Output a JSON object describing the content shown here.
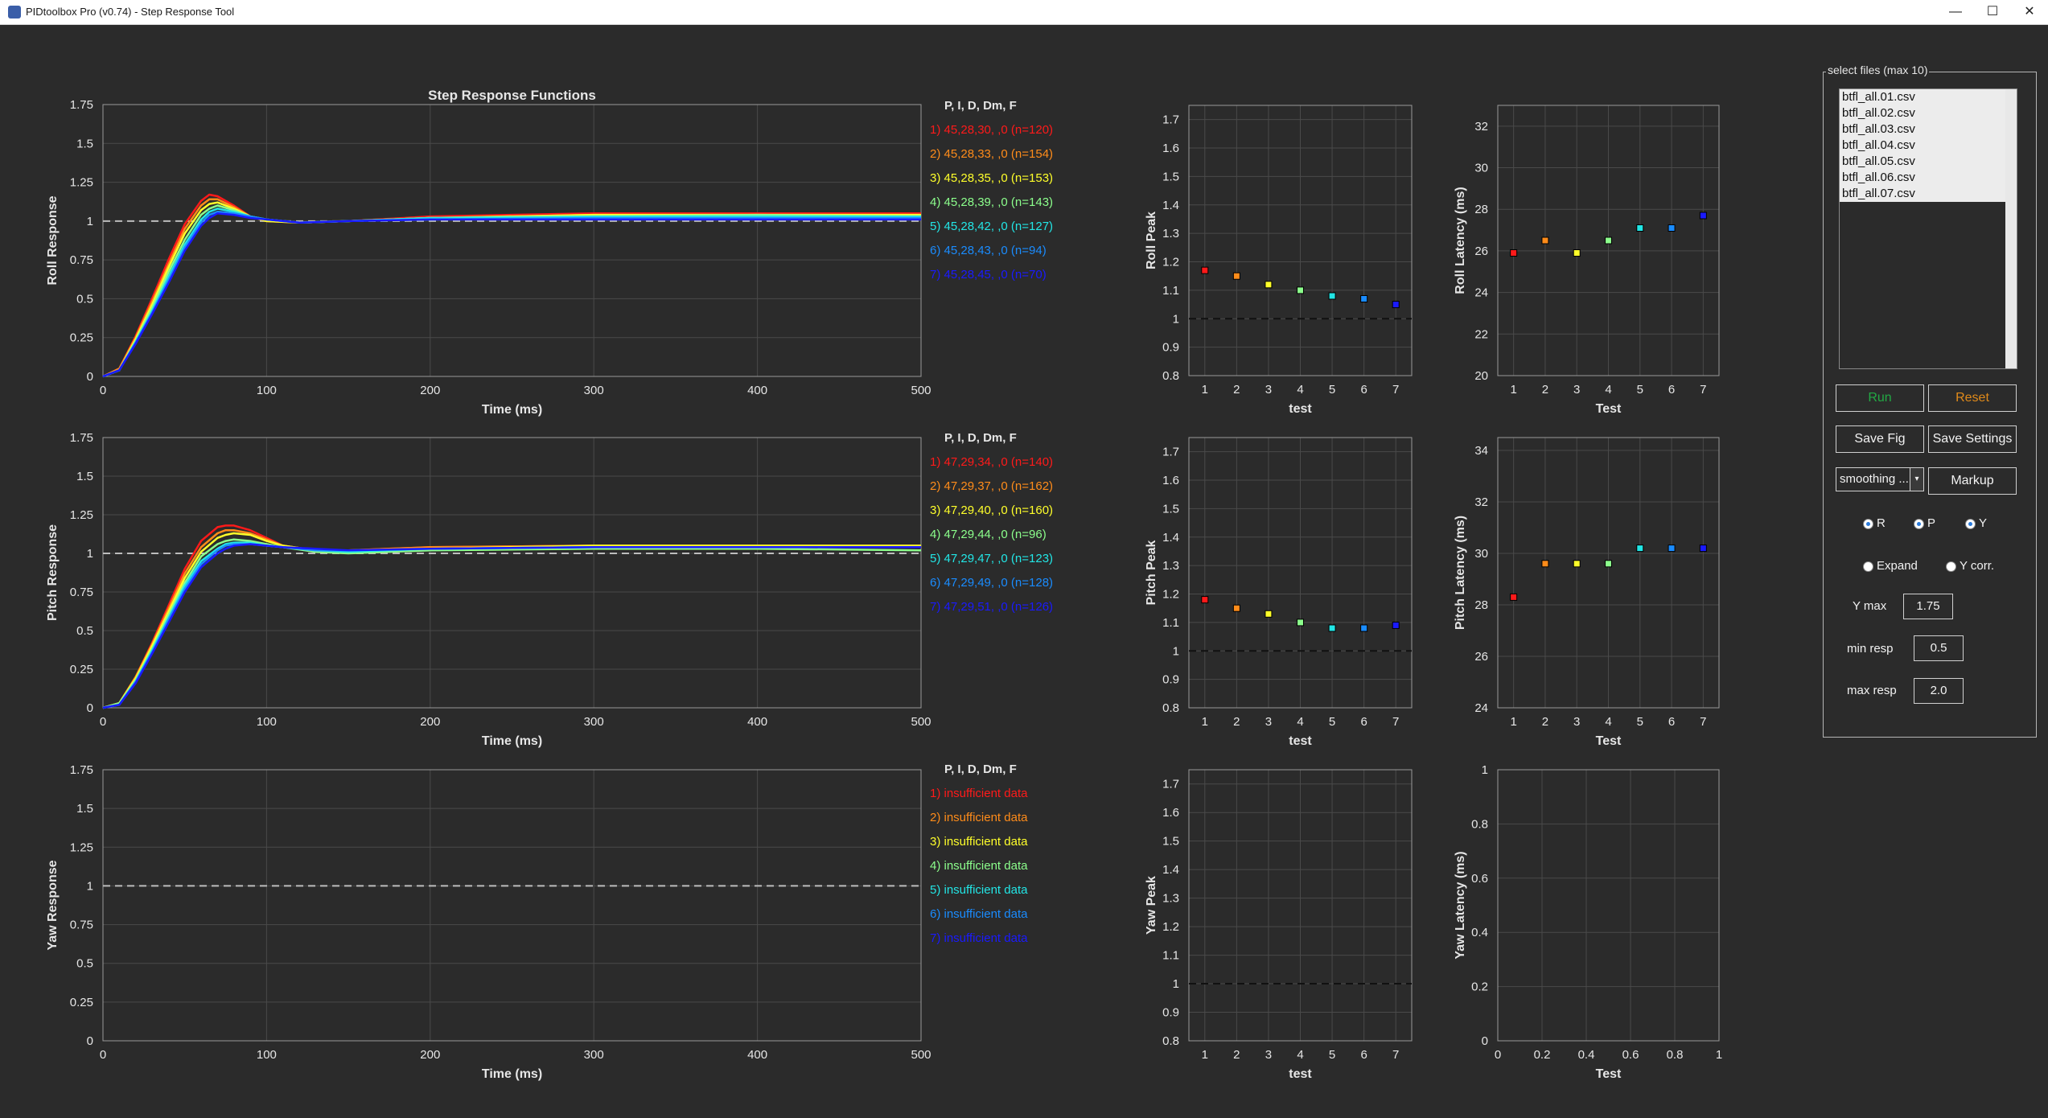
{
  "window": {
    "title": "PIDtoolbox Pro (v0.74) - Step Response Tool",
    "minimize": "—",
    "maximize": "☐",
    "close": "✕"
  },
  "colors": {
    "background": "#2b2b2b",
    "grid": "#4a4a4a",
    "axis_text": "#e6e6e6",
    "test_colors": [
      "#ff1a1a",
      "#ff8c1a",
      "#ffff2a",
      "#8cff8c",
      "#22e6e6",
      "#1a8cff",
      "#1a1aff"
    ]
  },
  "legends": [
    {
      "header": "P, I, D, Dm, F",
      "items": [
        "1) 45,28,30, ,0  (n=120)",
        "2) 45,28,33, ,0  (n=154)",
        "3) 45,28,35, ,0  (n=153)",
        "4) 45,28,39, ,0  (n=143)",
        "5) 45,28,42, ,0  (n=127)",
        "6) 45,28,43, ,0  (n=94)",
        "7) 45,28,45, ,0  (n=70)"
      ]
    },
    {
      "header": "P, I, D, Dm, F",
      "items": [
        "1) 47,29,34, ,0  (n=140)",
        "2) 47,29,37, ,0  (n=162)",
        "3) 47,29,40, ,0  (n=160)",
        "4) 47,29,44, ,0  (n=96)",
        "5) 47,29,47, ,0  (n=123)",
        "6) 47,29,49, ,0  (n=128)",
        "7) 47,29,51, ,0  (n=126)"
      ]
    },
    {
      "header": "P, I, D, Dm, F",
      "items": [
        "1) insufficient data",
        "2) insufficient data",
        "3) insufficient data",
        "4) insufficient data",
        "5) insufficient data",
        "6) insufficient data",
        "7) insufficient data"
      ]
    }
  ],
  "chart_data": [
    {
      "type": "line",
      "title": "Step Response Functions",
      "xlabel": "Time (ms)",
      "ylabel": "Roll Response",
      "xlim": [
        0,
        500
      ],
      "ylim": [
        0,
        1.75
      ],
      "xticks": [
        0,
        100,
        200,
        300,
        400,
        500
      ],
      "yticks": [
        0,
        0.25,
        0.5,
        0.75,
        1,
        1.25,
        1.5,
        1.75
      ],
      "reference_line": 1,
      "grid": true,
      "series": [
        {
          "name": "1) 45,28,30, ,0  (n=120)",
          "x": [
            0,
            10,
            20,
            30,
            40,
            50,
            60,
            65,
            70,
            80,
            90,
            100,
            120,
            150,
            200,
            300,
            400,
            500
          ],
          "y": [
            0,
            0.05,
            0.26,
            0.5,
            0.75,
            0.98,
            1.13,
            1.17,
            1.16,
            1.1,
            1.03,
            1.0,
            0.99,
            1.0,
            1.03,
            1.05,
            1.05,
            1.05
          ]
        },
        {
          "name": "2) 45,28,33, ,0  (n=154)",
          "x": [
            0,
            10,
            20,
            30,
            40,
            50,
            60,
            65,
            70,
            80,
            90,
            100,
            120,
            150,
            200,
            300,
            400,
            500
          ],
          "y": [
            0,
            0.05,
            0.25,
            0.48,
            0.72,
            0.95,
            1.1,
            1.14,
            1.14,
            1.09,
            1.03,
            1.0,
            0.99,
            1.0,
            1.02,
            1.04,
            1.04,
            1.04
          ]
        },
        {
          "name": "3) 45,28,35, ,0  (n=153)",
          "x": [
            0,
            10,
            20,
            30,
            40,
            50,
            60,
            65,
            70,
            80,
            90,
            100,
            120,
            150,
            200,
            300,
            400,
            500
          ],
          "y": [
            0,
            0.04,
            0.24,
            0.46,
            0.7,
            0.92,
            1.07,
            1.11,
            1.12,
            1.08,
            1.03,
            1.0,
            0.99,
            1.0,
            1.02,
            1.04,
            1.04,
            1.04
          ]
        },
        {
          "name": "4) 45,28,39, ,0  (n=143)",
          "x": [
            0,
            10,
            20,
            30,
            40,
            50,
            60,
            65,
            70,
            80,
            90,
            100,
            120,
            150,
            200,
            300,
            400,
            500
          ],
          "y": [
            0,
            0.04,
            0.23,
            0.44,
            0.67,
            0.88,
            1.04,
            1.08,
            1.1,
            1.07,
            1.03,
            1.01,
            0.99,
            1.0,
            1.02,
            1.03,
            1.04,
            1.03
          ]
        },
        {
          "name": "5) 45,28,42, ,0  (n=127)",
          "x": [
            0,
            10,
            20,
            30,
            40,
            50,
            60,
            65,
            70,
            80,
            90,
            100,
            120,
            150,
            200,
            300,
            400,
            500
          ],
          "y": [
            0,
            0.04,
            0.22,
            0.42,
            0.64,
            0.85,
            1.01,
            1.06,
            1.08,
            1.06,
            1.03,
            1.01,
            0.99,
            1.0,
            1.02,
            1.03,
            1.03,
            1.03
          ]
        },
        {
          "name": "6) 45,28,43, ,0  (n=94)",
          "x": [
            0,
            10,
            20,
            30,
            40,
            50,
            60,
            65,
            70,
            80,
            90,
            100,
            120,
            150,
            200,
            300,
            400,
            500
          ],
          "y": [
            0,
            0.04,
            0.22,
            0.41,
            0.62,
            0.83,
            0.99,
            1.04,
            1.06,
            1.05,
            1.03,
            1.01,
            0.99,
            1.0,
            1.01,
            1.02,
            1.02,
            1.02
          ]
        },
        {
          "name": "7) 45,28,45, ,0  (n=70)",
          "x": [
            0,
            10,
            20,
            30,
            40,
            50,
            60,
            65,
            70,
            80,
            90,
            100,
            120,
            150,
            200,
            300,
            400,
            500
          ],
          "y": [
            0,
            0.04,
            0.21,
            0.4,
            0.6,
            0.81,
            0.97,
            1.02,
            1.05,
            1.04,
            1.02,
            1.01,
            0.99,
            1.0,
            1.01,
            1.01,
            1.01,
            1.01
          ]
        }
      ]
    },
    {
      "type": "line",
      "xlabel": "Time (ms)",
      "ylabel": "Pitch Response",
      "xlim": [
        0,
        500
      ],
      "ylim": [
        0,
        1.75
      ],
      "xticks": [
        0,
        100,
        200,
        300,
        400,
        500
      ],
      "yticks": [
        0,
        0.25,
        0.5,
        0.75,
        1,
        1.25,
        1.5,
        1.75
      ],
      "reference_line": 1,
      "grid": true,
      "series": [
        {
          "name": "1) 47,29,34, ,0  (n=140)",
          "x": [
            0,
            10,
            20,
            30,
            40,
            50,
            60,
            70,
            75,
            80,
            90,
            100,
            110,
            130,
            150,
            200,
            300,
            400,
            500
          ],
          "y": [
            0,
            0.03,
            0.2,
            0.42,
            0.66,
            0.9,
            1.08,
            1.17,
            1.18,
            1.18,
            1.15,
            1.1,
            1.05,
            1.02,
            1.02,
            1.04,
            1.05,
            1.05,
            1.05
          ]
        },
        {
          "name": "2) 47,29,37, ,0  (n=162)",
          "x": [
            0,
            10,
            20,
            30,
            40,
            50,
            60,
            70,
            75,
            80,
            90,
            100,
            110,
            130,
            150,
            200,
            300,
            400,
            500
          ],
          "y": [
            0,
            0.03,
            0.2,
            0.41,
            0.64,
            0.87,
            1.04,
            1.13,
            1.15,
            1.15,
            1.13,
            1.09,
            1.05,
            1.02,
            1.02,
            1.04,
            1.05,
            1.05,
            1.05
          ]
        },
        {
          "name": "3) 47,29,40, ,0  (n=160)",
          "x": [
            0,
            10,
            20,
            30,
            40,
            50,
            60,
            70,
            75,
            80,
            90,
            100,
            110,
            130,
            150,
            200,
            300,
            400,
            500
          ],
          "y": [
            0,
            0.03,
            0.19,
            0.4,
            0.62,
            0.84,
            1.01,
            1.1,
            1.12,
            1.13,
            1.12,
            1.08,
            1.05,
            1.02,
            1.01,
            1.03,
            1.05,
            1.05,
            1.05
          ]
        },
        {
          "name": "4) 47,29,44, ,0  (n=96)",
          "x": [
            0,
            10,
            20,
            30,
            40,
            50,
            60,
            70,
            75,
            80,
            90,
            100,
            110,
            130,
            150,
            200,
            300,
            400,
            500
          ],
          "y": [
            0,
            0.03,
            0.18,
            0.38,
            0.6,
            0.81,
            0.98,
            1.06,
            1.08,
            1.09,
            1.08,
            1.06,
            1.04,
            1.01,
            1.0,
            1.02,
            1.03,
            1.03,
            1.02
          ]
        },
        {
          "name": "5) 47,29,47, ,0  (n=123)",
          "x": [
            0,
            10,
            20,
            30,
            40,
            50,
            60,
            70,
            75,
            80,
            90,
            100,
            110,
            130,
            150,
            200,
            300,
            400,
            500
          ],
          "y": [
            0,
            0.02,
            0.17,
            0.37,
            0.58,
            0.79,
            0.95,
            1.03,
            1.06,
            1.07,
            1.07,
            1.05,
            1.04,
            1.02,
            1.01,
            1.03,
            1.04,
            1.04,
            1.04
          ]
        },
        {
          "name": "6) 47,29,49, ,0  (n=128)",
          "x": [
            0,
            10,
            20,
            30,
            40,
            50,
            60,
            70,
            75,
            80,
            90,
            100,
            110,
            130,
            150,
            200,
            300,
            400,
            500
          ],
          "y": [
            0,
            0.02,
            0.17,
            0.36,
            0.57,
            0.77,
            0.93,
            1.02,
            1.05,
            1.06,
            1.06,
            1.05,
            1.04,
            1.02,
            1.02,
            1.03,
            1.04,
            1.04,
            1.04
          ]
        },
        {
          "name": "7) 47,29,51, ,0  (n=126)",
          "x": [
            0,
            10,
            20,
            30,
            40,
            50,
            60,
            70,
            75,
            80,
            90,
            100,
            110,
            130,
            150,
            200,
            300,
            400,
            500
          ],
          "y": [
            0,
            0.02,
            0.16,
            0.35,
            0.55,
            0.75,
            0.91,
            1.0,
            1.03,
            1.05,
            1.06,
            1.05,
            1.04,
            1.03,
            1.02,
            1.03,
            1.04,
            1.04,
            1.04
          ]
        }
      ]
    },
    {
      "type": "line",
      "xlabel": "Time (ms)",
      "ylabel": "Yaw Response",
      "xlim": [
        0,
        500
      ],
      "ylim": [
        0,
        1.75
      ],
      "xticks": [
        0,
        100,
        200,
        300,
        400,
        500
      ],
      "yticks": [
        0,
        0.25,
        0.5,
        0.75,
        1,
        1.25,
        1.5,
        1.75
      ],
      "reference_line": 1,
      "grid": true,
      "series": []
    },
    {
      "type": "scatter",
      "xlabel": "test",
      "ylabel": "Roll Peak",
      "xlim": [
        0.5,
        7.5
      ],
      "ylim": [
        0.8,
        1.75
      ],
      "xticks": [
        1,
        2,
        3,
        4,
        5,
        6,
        7
      ],
      "yticks": [
        0.8,
        0.9,
        1,
        1.1,
        1.2,
        1.3,
        1.4,
        1.5,
        1.6,
        1.7
      ],
      "reference_line": 1,
      "grid": true,
      "x": [
        1,
        2,
        3,
        4,
        5,
        6,
        7
      ],
      "y": [
        1.17,
        1.15,
        1.12,
        1.1,
        1.08,
        1.07,
        1.05
      ]
    },
    {
      "type": "scatter",
      "xlabel": "Test",
      "ylabel": "Roll Latency (ms)",
      "xlim": [
        0.5,
        7.5
      ],
      "ylim": [
        20,
        33
      ],
      "xticks": [
        1,
        2,
        3,
        4,
        5,
        6,
        7
      ],
      "yticks": [
        20,
        22,
        24,
        26,
        28,
        30,
        32
      ],
      "grid": true,
      "x": [
        1,
        2,
        3,
        4,
        5,
        6,
        7
      ],
      "y": [
        25.9,
        26.5,
        25.9,
        26.5,
        27.1,
        27.1,
        27.7
      ]
    },
    {
      "type": "scatter",
      "xlabel": "test",
      "ylabel": "Pitch Peak",
      "xlim": [
        0.5,
        7.5
      ],
      "ylim": [
        0.8,
        1.75
      ],
      "xticks": [
        1,
        2,
        3,
        4,
        5,
        6,
        7
      ],
      "yticks": [
        0.8,
        0.9,
        1,
        1.1,
        1.2,
        1.3,
        1.4,
        1.5,
        1.6,
        1.7
      ],
      "reference_line": 1,
      "grid": true,
      "x": [
        1,
        2,
        3,
        4,
        5,
        6,
        7
      ],
      "y": [
        1.18,
        1.15,
        1.13,
        1.1,
        1.08,
        1.08,
        1.09
      ]
    },
    {
      "type": "scatter",
      "xlabel": "Test",
      "ylabel": "Pitch Latency (ms)",
      "xlim": [
        0.5,
        7.5
      ],
      "ylim": [
        24,
        34.5
      ],
      "xticks": [
        1,
        2,
        3,
        4,
        5,
        6,
        7
      ],
      "yticks": [
        24,
        26,
        28,
        30,
        32,
        34
      ],
      "grid": true,
      "x": [
        1,
        2,
        3,
        4,
        5,
        6,
        7
      ],
      "y": [
        28.3,
        29.6,
        29.6,
        29.6,
        30.2,
        30.2,
        30.2
      ]
    },
    {
      "type": "scatter",
      "xlabel": "test",
      "ylabel": "Yaw Peak",
      "xlim": [
        0.5,
        7.5
      ],
      "ylim": [
        0.8,
        1.75
      ],
      "xticks": [
        1,
        2,
        3,
        4,
        5,
        6,
        7
      ],
      "yticks": [
        0.8,
        0.9,
        1,
        1.1,
        1.2,
        1.3,
        1.4,
        1.5,
        1.6,
        1.7
      ],
      "reference_line": 1,
      "grid": true,
      "x": [],
      "y": []
    },
    {
      "type": "scatter",
      "xlabel": "Test",
      "ylabel": "Yaw Latency (ms)",
      "xlim": [
        0,
        1
      ],
      "ylim": [
        0,
        1
      ],
      "xticks": [
        0,
        0.2,
        0.4,
        0.6,
        0.8,
        1
      ],
      "yticks": [
        0,
        0.2,
        0.4,
        0.6,
        0.8,
        1
      ],
      "grid": true,
      "x": [],
      "y": []
    }
  ],
  "panel": {
    "title": "select files (max 10)",
    "files": [
      "btfl_all.01.csv",
      "btfl_all.02.csv",
      "btfl_all.03.csv",
      "btfl_all.04.csv",
      "btfl_all.05.csv",
      "btfl_all.06.csv",
      "btfl_all.07.csv"
    ],
    "run": "Run",
    "reset": "Reset",
    "save_fig": "Save Fig",
    "save_settings": "Save Settings",
    "smoothing": "smoothing ...",
    "markup": "Markup",
    "radio_r": "R",
    "radio_p": "P",
    "radio_y": "Y",
    "expand": "Expand",
    "ycorr": "Y corr.",
    "ymax_label": "Y max",
    "ymax_value": "1.75",
    "minresp_label": "min resp",
    "minresp_value": "0.5",
    "maxresp_label": "max resp",
    "maxresp_value": "2.0"
  }
}
